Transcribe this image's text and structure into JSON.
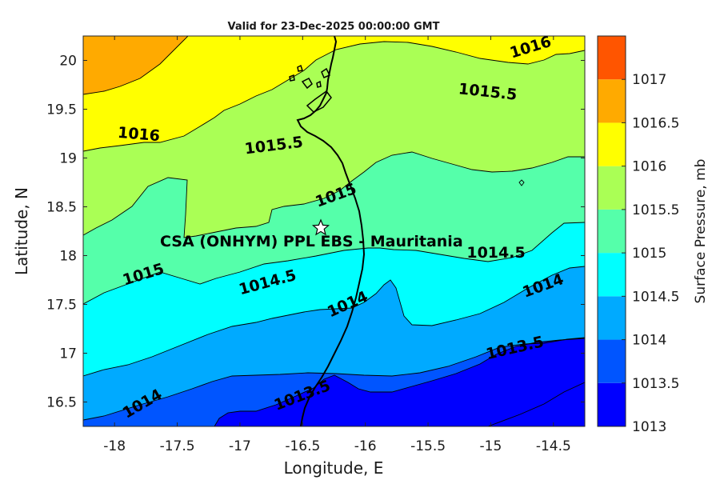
{
  "title": "Valid for 23-Dec-2025 00:00:00 GMT",
  "axes": {
    "xlabel": "Longitude, E",
    "ylabel": "Latitude, N",
    "xlim": [
      -18.25,
      -14.25
    ],
    "ylim": [
      16.25,
      20.25
    ],
    "xticks": [
      "-18",
      "-17.5",
      "-17",
      "-16.5",
      "-16",
      "-15.5",
      "-15",
      "-14.5"
    ],
    "yticks": [
      "20",
      "19.5",
      "19",
      "18.5",
      "18",
      "17.5",
      "17",
      "16.5"
    ]
  },
  "colorbar": {
    "label": "Surface Pressure, mb",
    "ticks": [
      "1017",
      "1016.5",
      "1016",
      "1015.5",
      "1015",
      "1014.5",
      "1014",
      "1013.5",
      "1013"
    ],
    "levels": [
      {
        "min": 1013.0,
        "max": 1013.5,
        "color": "#0000ff"
      },
      {
        "min": 1013.5,
        "max": 1014.0,
        "color": "#0055ff"
      },
      {
        "min": 1014.0,
        "max": 1014.5,
        "color": "#00aaff"
      },
      {
        "min": 1014.5,
        "max": 1015.0,
        "color": "#00ffff"
      },
      {
        "min": 1015.0,
        "max": 1015.5,
        "color": "#55ffaa"
      },
      {
        "min": 1015.5,
        "max": 1016.0,
        "color": "#aaff55"
      },
      {
        "min": 1016.0,
        "max": 1016.5,
        "color": "#ffff00"
      },
      {
        "min": 1016.5,
        "max": 1017.0,
        "color": "#ffaa00"
      },
      {
        "min": 1017.0,
        "max": 1017.5,
        "color": "#ff5500"
      }
    ]
  },
  "chart_data": {
    "type": "heatmap",
    "title": "Valid for 23-Dec-2025 00:00:00 GMT",
    "xlabel": "Longitude, E",
    "ylabel": "Latitude, N",
    "colorbar_label": "Surface Pressure, mb",
    "contour_interval": 0.5,
    "contour_labels": [
      "1016",
      "1015.5",
      "1016",
      "1015.5",
      "1015",
      "1015",
      "1014.5",
      "1014.5",
      "1014",
      "1014",
      "1014",
      "1013.5",
      "1013.5"
    ],
    "site": {
      "name": "CSA (ONHYM) PPL EBS  - Mauritania",
      "lon": -16.33,
      "lat": 18.27,
      "marker": "star"
    }
  }
}
